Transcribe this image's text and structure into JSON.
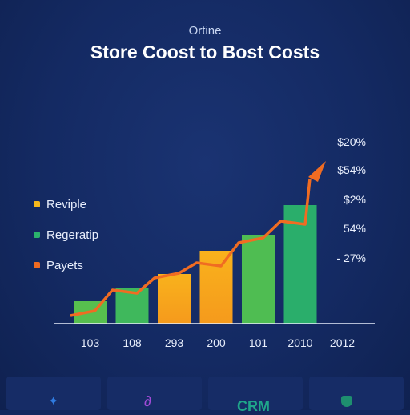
{
  "header": {
    "subtitle": "Ortine",
    "title": "Store Coost to Bost Costs"
  },
  "legend": [
    {
      "label": "Reviple",
      "color": "#f6b81c"
    },
    {
      "label": "Regeratip",
      "color": "#2bb36d"
    },
    {
      "label": "Payets",
      "color": "#ee6a22"
    }
  ],
  "chart_data": {
    "type": "bar",
    "categories": [
      "103",
      "108",
      "293",
      "200",
      "101",
      "2010",
      "2012"
    ],
    "values": [
      28,
      45,
      62,
      91,
      111,
      148,
      null
    ],
    "line_values": [
      10,
      42,
      57,
      76,
      101,
      128,
      181
    ],
    "right_labels": [
      "$20%",
      "$54%",
      "$2%",
      "54%",
      "- 27%"
    ],
    "bar_colors": [
      "#57bf4e",
      "#3fb85c",
      "#f6a51c",
      "#f5a01c",
      "#4fbd52",
      "#2aae6b"
    ],
    "line_color": "#f06c22",
    "ylim": [
      0,
      200
    ],
    "grid": false
  },
  "footer": {
    "tab_label": "CRM"
  }
}
